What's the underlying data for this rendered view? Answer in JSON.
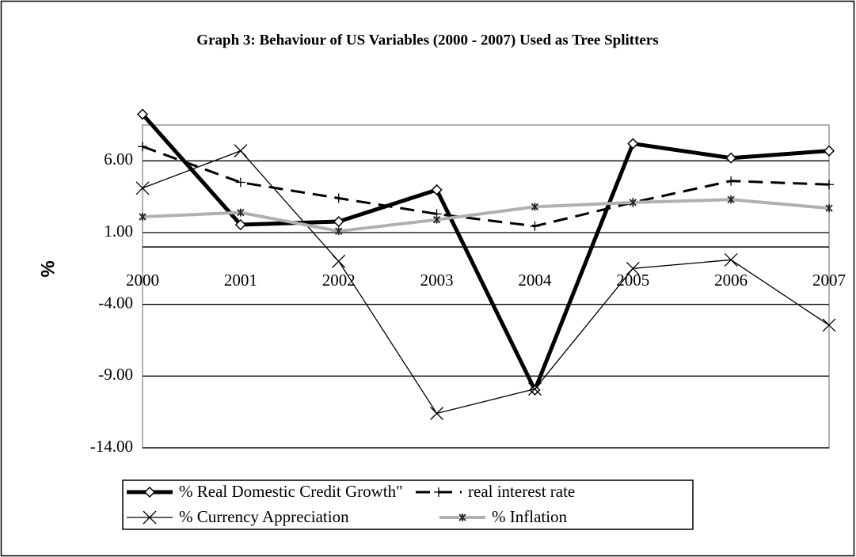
{
  "chart_data": {
    "type": "line",
    "title": "Graph 3: Behaviour of US Variables (2000 - 2007) Used as Tree Splitters",
    "y_label": "%",
    "categories": [
      "2000",
      "2001",
      "2002",
      "2003",
      "2004",
      "2005",
      "2006",
      "2007"
    ],
    "ylim": [
      -14,
      8.5
    ],
    "yticks": [
      {
        "value": -14,
        "label": "-14.00"
      },
      {
        "value": -9,
        "label": "-9.00"
      },
      {
        "value": -4,
        "label": "-4.00"
      },
      {
        "value": 1,
        "label": "1.00"
      },
      {
        "value": 6,
        "label": "6.00"
      }
    ],
    "grid": true,
    "series": [
      {
        "name": "% Real Domestic Credit Growth\"",
        "color": "#000000",
        "line_width": 5,
        "dash": "none",
        "marker": "diamond",
        "values": [
          9.25,
          1.55,
          1.77,
          3.98,
          -9.97,
          7.2,
          6.2,
          6.7
        ]
      },
      {
        "name": "real interest rate",
        "color": "#000000",
        "line_width": 3,
        "dash": "18 10",
        "marker": "plus",
        "values": [
          7.0,
          4.5,
          3.4,
          2.3,
          1.45,
          3.1,
          4.6,
          4.35
        ]
      },
      {
        "name": "% Currency Appreciation",
        "color": "#000000",
        "line_width": 1.3,
        "dash": "none",
        "marker": "x",
        "values": [
          4.1,
          6.7,
          -1.0,
          -11.6,
          -9.9,
          -1.5,
          -0.9,
          -5.45
        ]
      },
      {
        "name": "% Inflation",
        "color": "#b0b0b0",
        "line_width": 4,
        "dash": "none",
        "marker": "asterisk",
        "values": [
          2.1,
          2.4,
          1.1,
          1.9,
          2.8,
          3.1,
          3.3,
          2.7
        ]
      }
    ]
  }
}
